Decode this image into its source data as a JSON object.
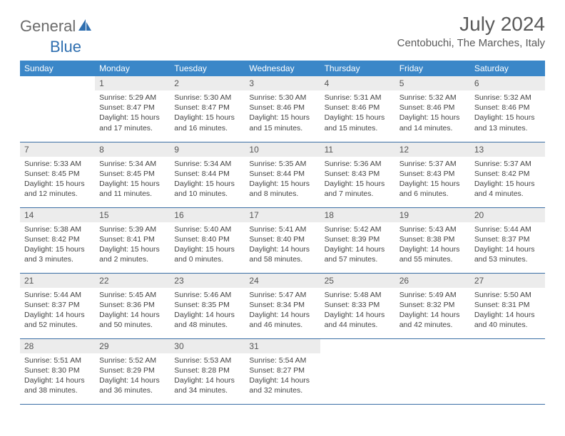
{
  "logo": {
    "part1": "General",
    "part2": "Blue"
  },
  "title": "July 2024",
  "location": "Centobuchi, The Marches, Italy",
  "colors": {
    "header_bg": "#3b87c8",
    "header_text": "#ffffff",
    "daynum_bg": "#ececec",
    "row_border": "#3b6fa5",
    "logo_gray": "#6b6b6b",
    "logo_blue": "#2f6fb0"
  },
  "weekdays": [
    "Sunday",
    "Monday",
    "Tuesday",
    "Wednesday",
    "Thursday",
    "Friday",
    "Saturday"
  ],
  "weeks": [
    [
      {
        "n": "",
        "sr": "",
        "ss": "",
        "dl": ""
      },
      {
        "n": "1",
        "sr": "5:29 AM",
        "ss": "8:47 PM",
        "dl": "15 hours and 17 minutes."
      },
      {
        "n": "2",
        "sr": "5:30 AM",
        "ss": "8:47 PM",
        "dl": "15 hours and 16 minutes."
      },
      {
        "n": "3",
        "sr": "5:30 AM",
        "ss": "8:46 PM",
        "dl": "15 hours and 15 minutes."
      },
      {
        "n": "4",
        "sr": "5:31 AM",
        "ss": "8:46 PM",
        "dl": "15 hours and 15 minutes."
      },
      {
        "n": "5",
        "sr": "5:32 AM",
        "ss": "8:46 PM",
        "dl": "15 hours and 14 minutes."
      },
      {
        "n": "6",
        "sr": "5:32 AM",
        "ss": "8:46 PM",
        "dl": "15 hours and 13 minutes."
      }
    ],
    [
      {
        "n": "7",
        "sr": "5:33 AM",
        "ss": "8:45 PM",
        "dl": "15 hours and 12 minutes."
      },
      {
        "n": "8",
        "sr": "5:34 AM",
        "ss": "8:45 PM",
        "dl": "15 hours and 11 minutes."
      },
      {
        "n": "9",
        "sr": "5:34 AM",
        "ss": "8:44 PM",
        "dl": "15 hours and 10 minutes."
      },
      {
        "n": "10",
        "sr": "5:35 AM",
        "ss": "8:44 PM",
        "dl": "15 hours and 8 minutes."
      },
      {
        "n": "11",
        "sr": "5:36 AM",
        "ss": "8:43 PM",
        "dl": "15 hours and 7 minutes."
      },
      {
        "n": "12",
        "sr": "5:37 AM",
        "ss": "8:43 PM",
        "dl": "15 hours and 6 minutes."
      },
      {
        "n": "13",
        "sr": "5:37 AM",
        "ss": "8:42 PM",
        "dl": "15 hours and 4 minutes."
      }
    ],
    [
      {
        "n": "14",
        "sr": "5:38 AM",
        "ss": "8:42 PM",
        "dl": "15 hours and 3 minutes."
      },
      {
        "n": "15",
        "sr": "5:39 AM",
        "ss": "8:41 PM",
        "dl": "15 hours and 2 minutes."
      },
      {
        "n": "16",
        "sr": "5:40 AM",
        "ss": "8:40 PM",
        "dl": "15 hours and 0 minutes."
      },
      {
        "n": "17",
        "sr": "5:41 AM",
        "ss": "8:40 PM",
        "dl": "14 hours and 58 minutes."
      },
      {
        "n": "18",
        "sr": "5:42 AM",
        "ss": "8:39 PM",
        "dl": "14 hours and 57 minutes."
      },
      {
        "n": "19",
        "sr": "5:43 AM",
        "ss": "8:38 PM",
        "dl": "14 hours and 55 minutes."
      },
      {
        "n": "20",
        "sr": "5:44 AM",
        "ss": "8:37 PM",
        "dl": "14 hours and 53 minutes."
      }
    ],
    [
      {
        "n": "21",
        "sr": "5:44 AM",
        "ss": "8:37 PM",
        "dl": "14 hours and 52 minutes."
      },
      {
        "n": "22",
        "sr": "5:45 AM",
        "ss": "8:36 PM",
        "dl": "14 hours and 50 minutes."
      },
      {
        "n": "23",
        "sr": "5:46 AM",
        "ss": "8:35 PM",
        "dl": "14 hours and 48 minutes."
      },
      {
        "n": "24",
        "sr": "5:47 AM",
        "ss": "8:34 PM",
        "dl": "14 hours and 46 minutes."
      },
      {
        "n": "25",
        "sr": "5:48 AM",
        "ss": "8:33 PM",
        "dl": "14 hours and 44 minutes."
      },
      {
        "n": "26",
        "sr": "5:49 AM",
        "ss": "8:32 PM",
        "dl": "14 hours and 42 minutes."
      },
      {
        "n": "27",
        "sr": "5:50 AM",
        "ss": "8:31 PM",
        "dl": "14 hours and 40 minutes."
      }
    ],
    [
      {
        "n": "28",
        "sr": "5:51 AM",
        "ss": "8:30 PM",
        "dl": "14 hours and 38 minutes."
      },
      {
        "n": "29",
        "sr": "5:52 AM",
        "ss": "8:29 PM",
        "dl": "14 hours and 36 minutes."
      },
      {
        "n": "30",
        "sr": "5:53 AM",
        "ss": "8:28 PM",
        "dl": "14 hours and 34 minutes."
      },
      {
        "n": "31",
        "sr": "5:54 AM",
        "ss": "8:27 PM",
        "dl": "14 hours and 32 minutes."
      },
      {
        "n": "",
        "sr": "",
        "ss": "",
        "dl": ""
      },
      {
        "n": "",
        "sr": "",
        "ss": "",
        "dl": ""
      },
      {
        "n": "",
        "sr": "",
        "ss": "",
        "dl": ""
      }
    ]
  ],
  "labels": {
    "sunrise": "Sunrise:",
    "sunset": "Sunset:",
    "daylight": "Daylight:"
  }
}
